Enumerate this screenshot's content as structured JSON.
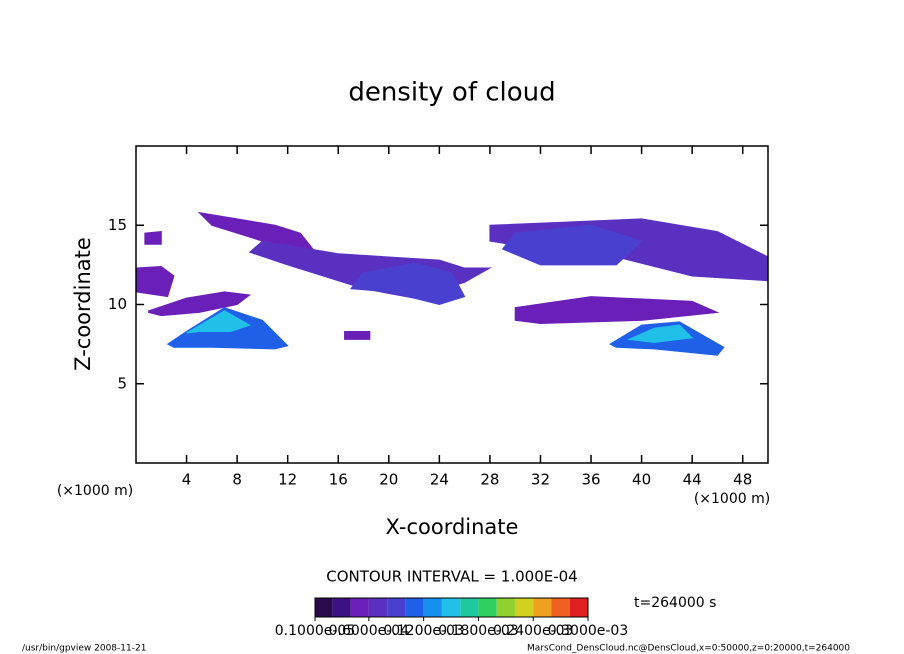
{
  "chart_data": {
    "type": "contour",
    "title": "density of cloud",
    "x_label": "X-coordinate",
    "y_label": "Z-coordinate",
    "x_unit": "(×1000 m)",
    "y_unit": "(×1000 m)",
    "xlim": [
      0,
      50
    ],
    "ylim": [
      0,
      20
    ],
    "xticks": [
      4,
      8,
      12,
      16,
      20,
      24,
      28,
      32,
      36,
      40,
      44,
      48
    ],
    "yticks": [
      5,
      10,
      15
    ],
    "contour_interval": "CONTOUR INTERVAL = 1.000E-04",
    "time": "t=264000 s",
    "regions": [
      {
        "x": [
          0,
          2.5,
          3,
          2,
          0
        ],
        "z": [
          10.8,
          10.5,
          11.8,
          12.4,
          12.3
        ],
        "value": 5e-05
      },
      {
        "x": [
          0.7,
          2,
          2,
          0.7
        ],
        "z": [
          14.5,
          14.6,
          13.8,
          13.8
        ],
        "value": 5e-05
      },
      {
        "x": [
          1,
          4,
          7,
          9,
          8,
          5,
          2,
          1
        ],
        "z": [
          9.6,
          10.4,
          10.8,
          10.6,
          10,
          9.5,
          9.3,
          9.5
        ],
        "value": 5e-05
      },
      {
        "x": [
          2.5,
          4,
          7,
          10,
          12,
          11,
          6,
          3
        ],
        "z": [
          7.5,
          8.3,
          9.8,
          9,
          7.4,
          7.2,
          7.3,
          7.3
        ],
        "value": 0.0001
      },
      {
        "x": [
          4,
          7,
          9,
          7.5,
          5
        ],
        "z": [
          8.2,
          9.6,
          8.7,
          8.3,
          8.3
        ],
        "value": 0.00014
      },
      {
        "x": [
          5,
          8,
          11,
          13,
          14,
          10,
          6
        ],
        "z": [
          15.8,
          15.4,
          15,
          14.5,
          13.5,
          14,
          15
        ],
        "value": 5e-05
      },
      {
        "x": [
          10,
          16,
          20,
          24,
          26,
          28,
          26,
          22,
          18,
          12,
          9
        ],
        "z": [
          14,
          13.2,
          13,
          12.8,
          12.3,
          12.3,
          11.4,
          10.4,
          11,
          12.5,
          13.3
        ],
        "value": 6e-05
      },
      {
        "x": [
          18,
          22,
          25,
          26,
          24,
          20,
          17
        ],
        "z": [
          12,
          12.6,
          12,
          10.5,
          10,
          10.8,
          11
        ],
        "value": 8e-05
      },
      {
        "x": [
          16.5,
          18.5,
          18.5,
          16.5
        ],
        "z": [
          8.3,
          8.3,
          7.8,
          7.8
        ],
        "value": 5e-05
      },
      {
        "x": [
          28,
          34,
          40,
          46,
          50,
          50,
          44,
          38,
          32,
          28
        ],
        "z": [
          15,
          15.2,
          15.4,
          14.6,
          13,
          11.5,
          11.8,
          13,
          13.5,
          14
        ],
        "value": 6e-05
      },
      {
        "x": [
          30,
          36,
          40,
          38,
          32,
          29
        ],
        "z": [
          14.5,
          15,
          14,
          12.5,
          12.5,
          13.5
        ],
        "value": 8e-05
      },
      {
        "x": [
          30,
          36,
          44,
          46,
          40,
          32,
          30
        ],
        "z": [
          9.8,
          10.5,
          10.2,
          9.5,
          9,
          8.8,
          9
        ],
        "value": 5e-05
      },
      {
        "x": [
          37.5,
          40,
          43,
          46.5,
          46,
          41,
          38
        ],
        "z": [
          7.5,
          8.7,
          8.9,
          7.3,
          6.8,
          7.2,
          7.3
        ],
        "value": 0.0001
      },
      {
        "x": [
          39,
          41,
          43,
          44,
          41
        ],
        "z": [
          7.8,
          8.5,
          8.7,
          7.9,
          7.6
        ],
        "value": 0.00015
      }
    ],
    "colorbar": {
      "levels": [
        1e-06,
        2e-05,
        4e-05,
        6e-05,
        8e-05,
        0.0001,
        0.00012,
        0.00014,
        0.00016,
        0.00018,
        0.0002,
        0.00022,
        0.00024,
        0.00026,
        0.00028,
        0.0003
      ],
      "colors": [
        "#2a0a4a",
        "#3b1080",
        "#6a20b8",
        "#5a30c0",
        "#4a40d0",
        "#2060e8",
        "#1890f0",
        "#20c0e8",
        "#20c8a0",
        "#30d060",
        "#90d030",
        "#d0d020",
        "#f0a020",
        "#f06020",
        "#e02020"
      ],
      "ticks": [
        {
          "value": 1e-06,
          "label": "0.1000e-05"
        },
        {
          "value": 6e-05,
          "label": "0.6000e-04"
        },
        {
          "value": 0.00012,
          "label": "0.1200e-03"
        },
        {
          "value": 0.00018,
          "label": "0.1800e-03"
        },
        {
          "value": 0.00024,
          "label": "0.2400e-03"
        },
        {
          "value": 0.0003,
          "label": "0.3000e-03"
        }
      ]
    },
    "footer_left": "/usr/bin/gpview   2008-11-21",
    "footer_right": "MarsCond_DensCloud.nc@DensCloud,x=0:50000,z=0:20000,t=264000"
  }
}
